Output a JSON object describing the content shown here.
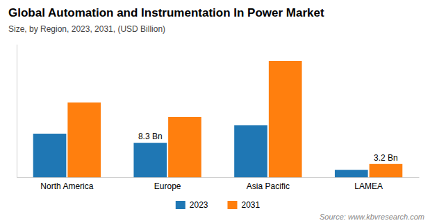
{
  "chart_data": {
    "type": "bar",
    "title": "Global Automation and Instrumentation In Power Market",
    "subtitle": "Size, by Region, 2023, 2031, (USD Billion)",
    "source": "Source: www.kbvresearch.com",
    "categories": [
      "North America",
      "Europe",
      "Asia Pacific",
      "LAMEA"
    ],
    "series": [
      {
        "name": "2023",
        "values": [
          10.5,
          8.3,
          12.5,
          1.8
        ]
      },
      {
        "name": "2031",
        "values": [
          18.0,
          14.5,
          28.0,
          3.2
        ]
      }
    ],
    "annotations": [
      {
        "text": "8.3 Bn",
        "category": "Europe",
        "series": "2023",
        "value": 8.3
      },
      {
        "text": "3.2 Bn",
        "category": "LAMEA",
        "series": "2031",
        "value": 3.2
      }
    ],
    "ylim": [
      0,
      32
    ],
    "yticks": [],
    "grid": false,
    "legend": "bottom",
    "tick_labels": "x"
  }
}
